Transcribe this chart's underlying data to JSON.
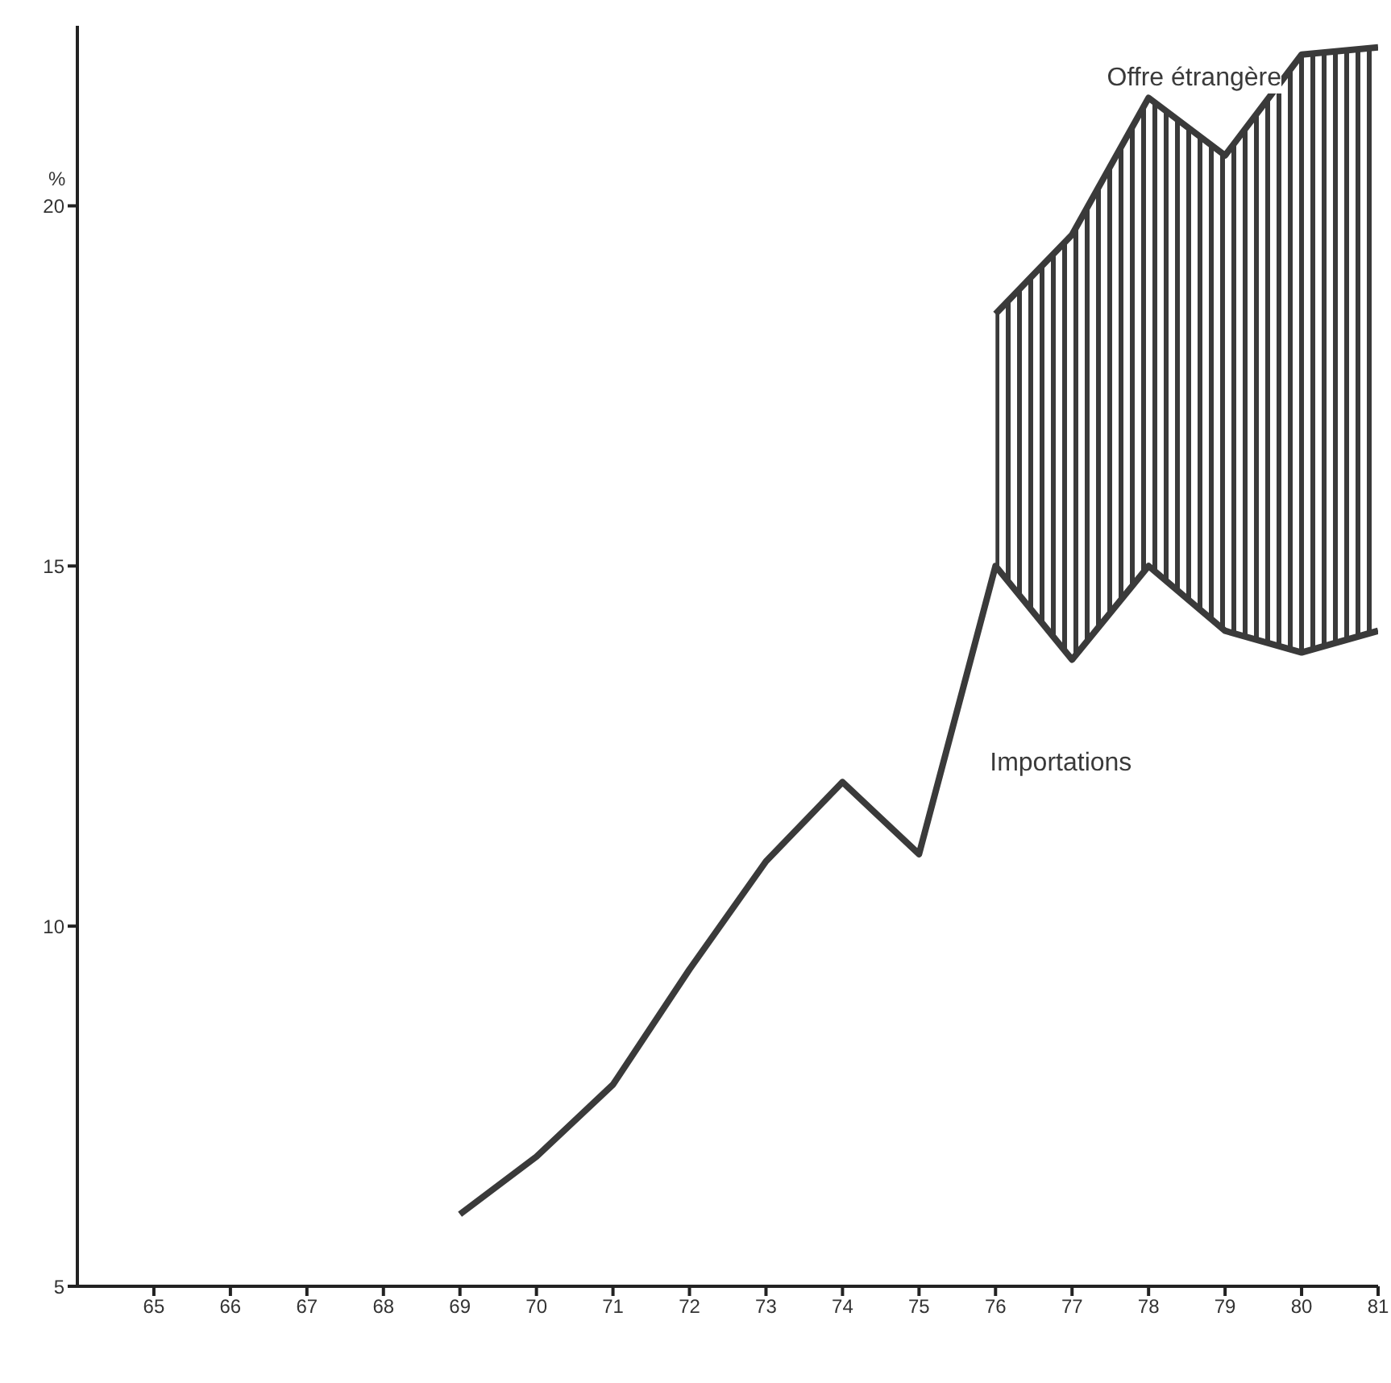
{
  "chart_data": {
    "type": "line",
    "ylabel": "%",
    "categories": [
      "65",
      "66",
      "67",
      "68",
      "69",
      "70",
      "71",
      "72",
      "73",
      "74",
      "75",
      "76",
      "77",
      "78",
      "79",
      "80",
      "81"
    ],
    "series": [
      {
        "name": "Importations",
        "color": "#3a3a3a",
        "values": [
          null,
          null,
          null,
          null,
          6.0,
          6.8,
          7.8,
          9.4,
          10.9,
          12.0,
          11.0,
          15.0,
          13.7,
          15.0,
          14.1,
          13.8,
          14.1
        ]
      },
      {
        "name": "Offre étrangère",
        "type": "area",
        "color": "#3a3a3a",
        "values": [
          null,
          null,
          null,
          null,
          null,
          null,
          null,
          null,
          null,
          null,
          null,
          18.5,
          19.6,
          21.5,
          20.7,
          22.1,
          22.2
        ]
      }
    ],
    "ylim": [
      5,
      22.5
    ],
    "yticks": [
      5,
      10,
      15,
      20
    ],
    "grid": false,
    "legend": false,
    "marker": "none",
    "line_style": "solid"
  }
}
